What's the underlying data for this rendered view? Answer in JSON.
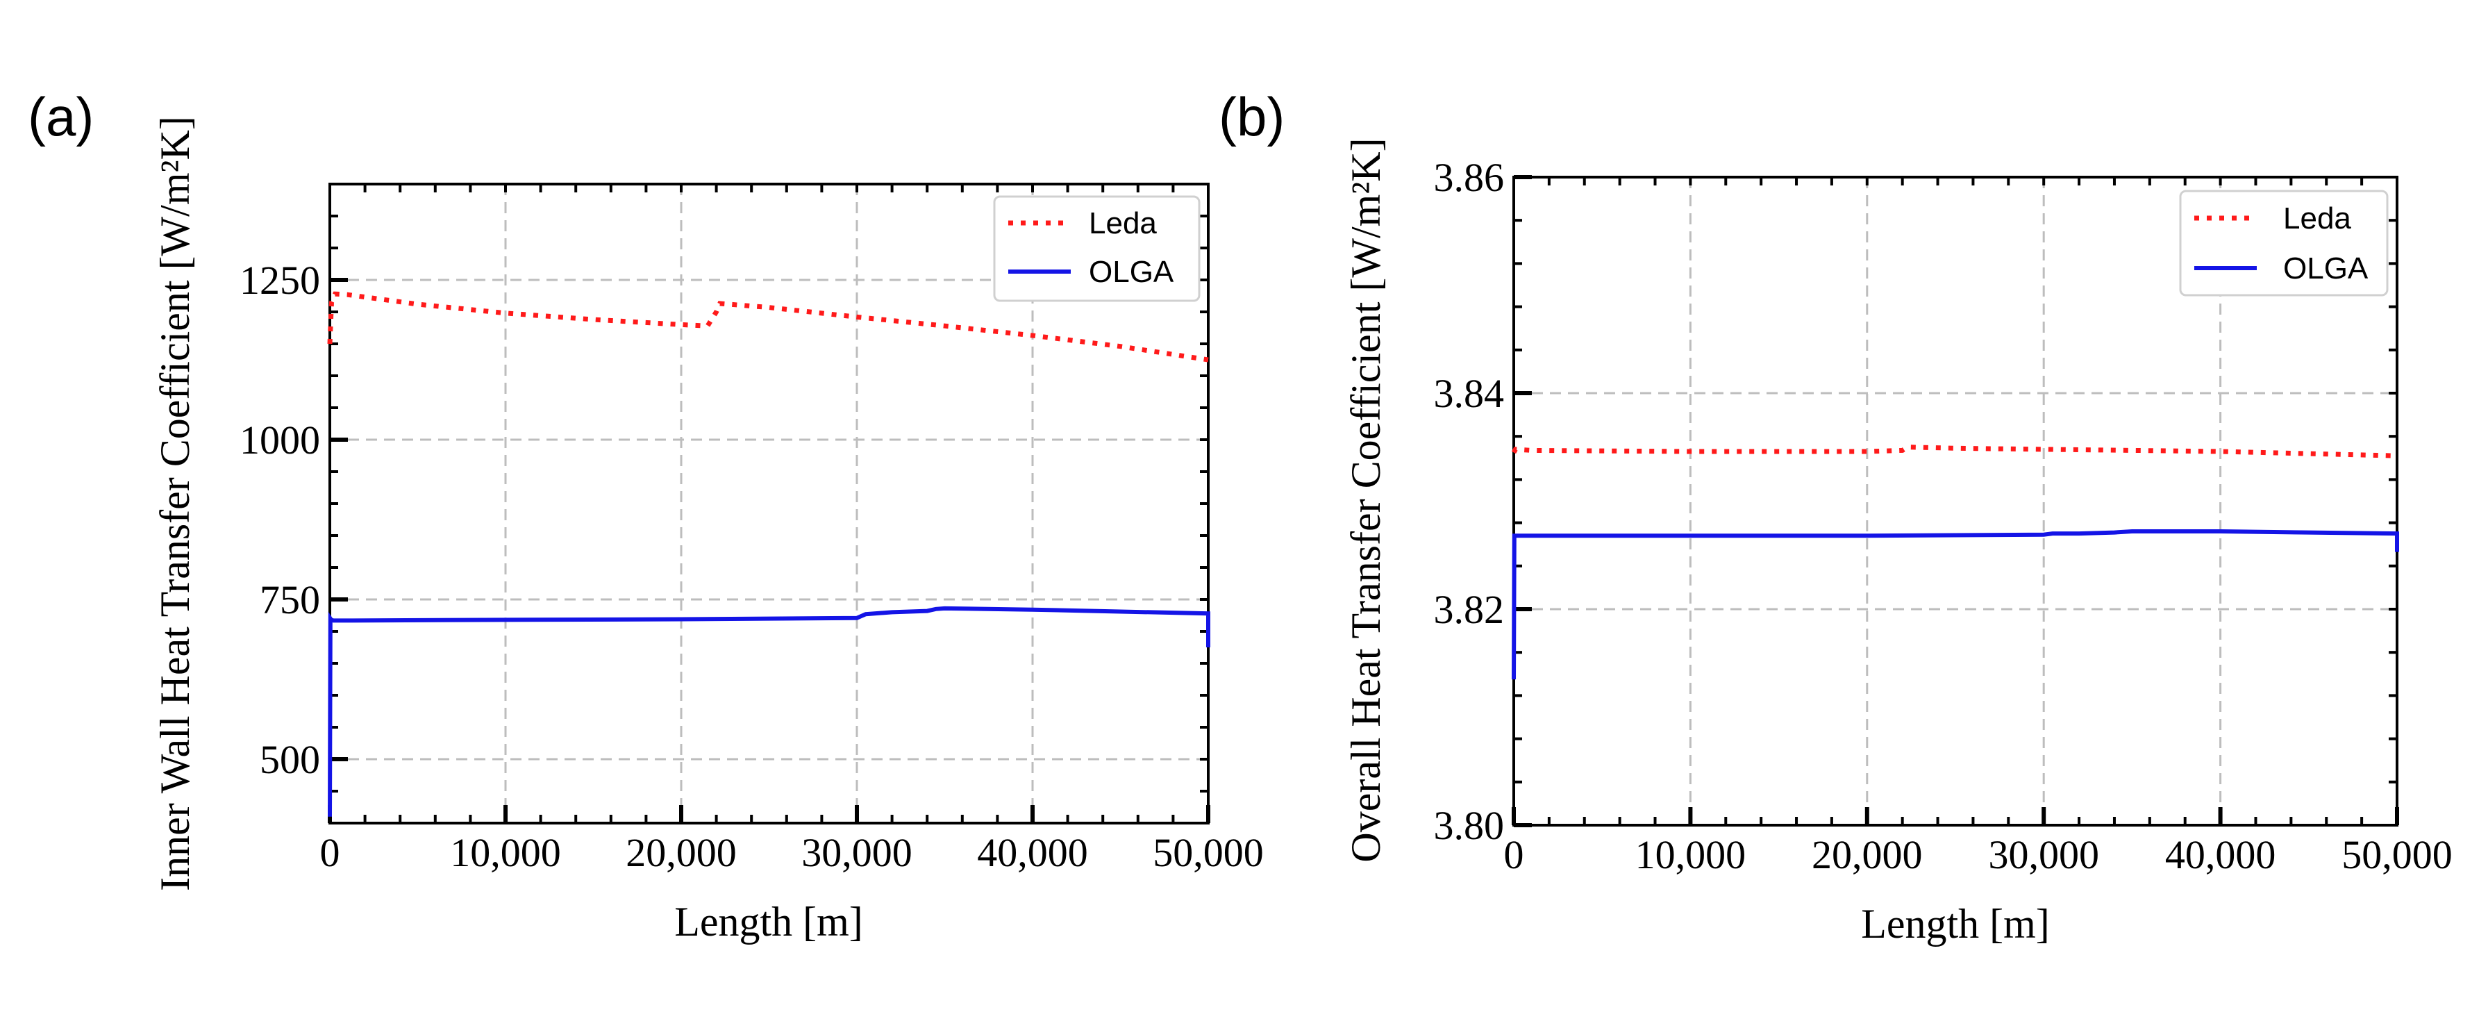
{
  "chart_data": [
    {
      "type": "line",
      "panel_label": "(a)",
      "xlabel": "Length [m]",
      "ylabel": "Inner Wall Heat Transfer Coefficient [W/m²K]",
      "xlim": [
        0,
        50000
      ],
      "ylim": [
        400,
        1400
      ],
      "xticks": [
        0,
        10000,
        20000,
        30000,
        40000,
        50000
      ],
      "xtick_labels": [
        "0",
        "10,000",
        "20,000",
        "30,000",
        "40,000",
        "50,000"
      ],
      "yticks": [
        500,
        750,
        1000,
        1250
      ],
      "ytick_labels": [
        "500",
        "750",
        "1000",
        "1250"
      ],
      "grid": true,
      "legend_position": "top-right",
      "series": [
        {
          "name": "Leda",
          "style": "dotted",
          "color": "#ff1a1a",
          "x": [
            0,
            100,
            300,
            1000,
            5000,
            10000,
            15000,
            20000,
            21500,
            22000,
            22200,
            25000,
            30000,
            35000,
            40000,
            45000,
            50000
          ],
          "y": [
            1150,
            1215,
            1228,
            1227,
            1212,
            1198,
            1188,
            1180,
            1178,
            1200,
            1213,
            1207,
            1192,
            1178,
            1163,
            1146,
            1125
          ]
        },
        {
          "name": "OLGA",
          "style": "solid",
          "color": "#1414e6",
          "x": [
            0,
            30,
            80,
            200,
            1000,
            10000,
            20000,
            30000,
            30500,
            32000,
            34000,
            34500,
            35000,
            40000,
            45000,
            50000,
            50050
          ],
          "y": [
            410,
            720,
            718,
            717,
            717,
            718,
            719,
            721,
            727,
            730,
            732,
            735,
            736,
            734,
            731,
            728,
            675
          ]
        }
      ]
    },
    {
      "type": "line",
      "panel_label": "(b)",
      "xlabel": "Length [m]",
      "ylabel": "Overall Heat Transfer Coefficient [W/m²K]",
      "xlim": [
        0,
        50000
      ],
      "ylim": [
        3.8,
        3.86
      ],
      "xticks": [
        0,
        10000,
        20000,
        30000,
        40000,
        50000
      ],
      "xtick_labels": [
        "0",
        "10,000",
        "20,000",
        "30,000",
        "40,000",
        "50,000"
      ],
      "yticks": [
        3.8,
        3.82,
        3.84,
        3.86
      ],
      "ytick_labels": [
        "3.80",
        "3.82",
        "3.84",
        "3.86"
      ],
      "grid": true,
      "legend_position": "top-right",
      "series": [
        {
          "name": "Leda",
          "style": "dotted",
          "color": "#ff1a1a",
          "x": [
            0,
            100,
            1000,
            10000,
            20000,
            22000,
            22300,
            25000,
            30000,
            35000,
            40000,
            45000,
            50000,
            50600
          ],
          "y": [
            3.8345,
            3.8348,
            3.8347,
            3.8346,
            3.8346,
            3.8347,
            3.835,
            3.8349,
            3.8348,
            3.8347,
            3.8346,
            3.8344,
            3.8342,
            3.8341
          ]
        },
        {
          "name": "OLGA",
          "style": "solid",
          "color": "#1414e6",
          "x": [
            0,
            30,
            100,
            1000,
            10000,
            20000,
            30000,
            30500,
            32000,
            34000,
            35000,
            40000,
            45000,
            50000,
            50600,
            50650
          ],
          "y": [
            3.8135,
            3.8268,
            3.8268,
            3.8268,
            3.8268,
            3.8268,
            3.8269,
            3.827,
            3.827,
            3.8271,
            3.8272,
            3.8272,
            3.8271,
            3.827,
            3.8269,
            3.8253
          ]
        }
      ]
    }
  ]
}
